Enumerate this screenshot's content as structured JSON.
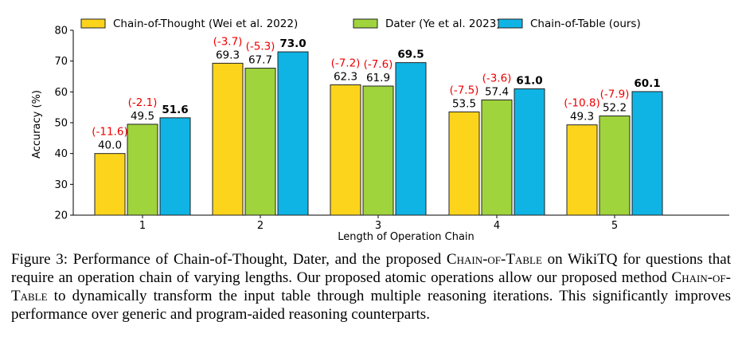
{
  "chart_data": {
    "type": "bar",
    "xlabel": "Length of Operation Chain",
    "ylabel": "Accuracy (%)",
    "ylim": [
      20,
      80
    ],
    "yticks": [
      20,
      30,
      40,
      50,
      60,
      70,
      80
    ],
    "categories": [
      "1",
      "2",
      "3",
      "4",
      "5"
    ],
    "legend_position": "top",
    "series": [
      {
        "name": "Chain-of-Thought (Wei et al. 2022)",
        "color": "#fdd41c",
        "values": [
          40.0,
          69.3,
          62.3,
          53.5,
          49.3
        ],
        "labels": [
          "40.0",
          "69.3",
          "62.3",
          "53.5",
          "49.3"
        ],
        "diffs": [
          "(-11.6)",
          "(-3.7)",
          "(-7.2)",
          "(-7.5)",
          "(-10.8)"
        ],
        "bold": false
      },
      {
        "name": "Dater (Ye et al. 2023)",
        "color": "#9fd43c",
        "values": [
          49.5,
          67.7,
          61.9,
          57.4,
          52.2
        ],
        "labels": [
          "49.5",
          "67.7",
          "61.9",
          "57.4",
          "52.2"
        ],
        "diffs": [
          "(-2.1)",
          "(-5.3)",
          "(-7.6)",
          "(-3.6)",
          "(-7.9)"
        ],
        "bold": false
      },
      {
        "name": "Chain-of-Table (ours)",
        "color": "#0fb4e4",
        "values": [
          51.6,
          73.0,
          69.5,
          61.0,
          60.1
        ],
        "labels": [
          "51.6",
          "73.0",
          "69.5",
          "61.0",
          "60.1"
        ],
        "diffs": [],
        "bold": true
      }
    ]
  },
  "caption": {
    "prefix": "Figure 3:  Performance of Chain-of-Thought, Dater, and the proposed ",
    "method_name": "Chain-of-Table",
    "middle": " on WikiTQ for questions that require an operation chain of varying lengths. Our proposed atomic operations allow our proposed method ",
    "method_name_2": "Chain-of-Table",
    "suffix": " to dynamically transform the input table through multiple reasoning iterations. This significantly improves performance over generic and program-aided reasoning counterparts."
  }
}
